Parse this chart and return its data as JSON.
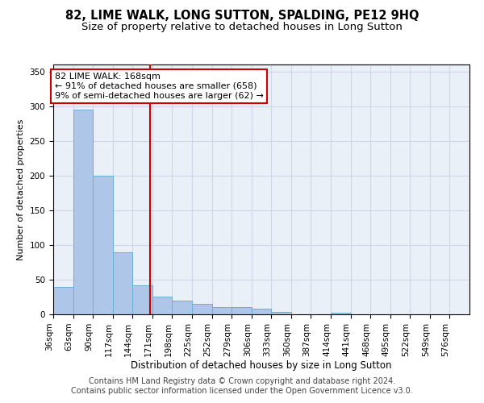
{
  "title": "82, LIME WALK, LONG SUTTON, SPALDING, PE12 9HQ",
  "subtitle": "Size of property relative to detached houses in Long Sutton",
  "xlabel": "Distribution of detached houses by size in Long Sutton",
  "ylabel": "Number of detached properties",
  "footer_line1": "Contains HM Land Registry data © Crown copyright and database right 2024.",
  "footer_line2": "Contains public sector information licensed under the Open Government Licence v3.0.",
  "bin_labels": [
    "36sqm",
    "63sqm",
    "90sqm",
    "117sqm",
    "144sqm",
    "171sqm",
    "198sqm",
    "225sqm",
    "252sqm",
    "279sqm",
    "306sqm",
    "333sqm",
    "360sqm",
    "387sqm",
    "414sqm",
    "441sqm",
    "468sqm",
    "495sqm",
    "522sqm",
    "549sqm",
    "576sqm"
  ],
  "bin_edges": [
    36,
    63,
    90,
    117,
    144,
    171,
    198,
    225,
    252,
    279,
    306,
    333,
    360,
    387,
    414,
    441,
    468,
    495,
    522,
    549,
    576
  ],
  "bar_heights": [
    40,
    295,
    200,
    90,
    42,
    25,
    20,
    15,
    10,
    10,
    8,
    3,
    0,
    0,
    2,
    0,
    0,
    0,
    0,
    0,
    0
  ],
  "bar_color": "#aec6e8",
  "bar_edge_color": "#6aaed6",
  "grid_color": "#d0d8e8",
  "bg_color": "#eaf0f8",
  "red_line_x": 168,
  "ylim": [
    0,
    360
  ],
  "yticks": [
    0,
    50,
    100,
    150,
    200,
    250,
    300,
    350
  ],
  "annotation_text": "82 LIME WALK: 168sqm\n← 91% of detached houses are smaller (658)\n9% of semi-detached houses are larger (62) →",
  "annotation_box_color": "#ffffff",
  "annotation_edge_color": "#cc0000",
  "title_fontsize": 10.5,
  "subtitle_fontsize": 9.5,
  "xlabel_fontsize": 8.5,
  "ylabel_fontsize": 8,
  "tick_fontsize": 7.5,
  "footer_fontsize": 7,
  "annot_fontsize": 8
}
